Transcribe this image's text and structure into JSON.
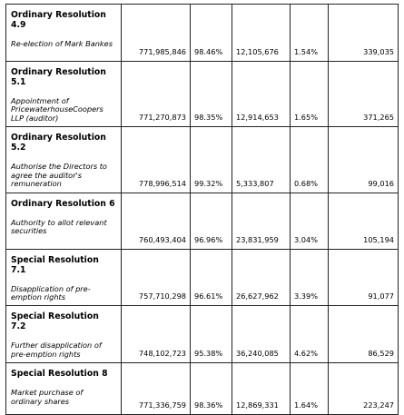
{
  "rows": [
    {
      "title": "Ordinary Resolution 4.9",
      "description": "Re-election of Mark Bankes",
      "votes_for": "771,985,846",
      "for_pct": "98.46%",
      "votes_against": "12,105,676",
      "against_pct": "1.54%",
      "withheld": "339,035"
    },
    {
      "title": "Ordinary Resolution 5.1",
      "description": "Appointment of PricewaterhouseCoopers LLP (auditor)",
      "votes_for": "771,270,873",
      "for_pct": "98.35%",
      "votes_against": "12,914,653",
      "against_pct": "1.65%",
      "withheld": "371,265"
    },
    {
      "title": "Ordinary Resolution 5.2",
      "description": "Authorise the Directors to agree the auditor's remuneration",
      "votes_for": "778,996,514",
      "for_pct": "99.32%",
      "votes_against": "5,333,807",
      "against_pct": "0.68%",
      "withheld": "99,016"
    },
    {
      "title": "Ordinary Resolution 6",
      "description": "Authority to allot relevant securities",
      "votes_for": "760,493,404",
      "for_pct": "96.96%",
      "votes_against": "23,831,959",
      "against_pct": "3.04%",
      "withheld": "105,194"
    },
    {
      "title": "Special Resolution 7.1",
      "description": "Disapplication of pre-emption rights",
      "votes_for": "757,710,298",
      "for_pct": "96.61%",
      "votes_against": "26,627,962",
      "against_pct": "3.39%",
      "withheld": "91,077"
    },
    {
      "title": "Special Resolution 7.2",
      "description": "Further disapplication of pre-emption rights",
      "votes_for": "748,102,723",
      "for_pct": "95.38%",
      "votes_against": "36,240,085",
      "against_pct": "4.62%",
      "withheld": "86,529"
    },
    {
      "title": "Special Resolution 8",
      "description": "Market purchase of ordinary shares",
      "votes_for": "771,336,759",
      "for_pct": "98.36%",
      "votes_against": "12,869,331",
      "against_pct": "1.64%",
      "withheld": "223,247"
    }
  ]
}
